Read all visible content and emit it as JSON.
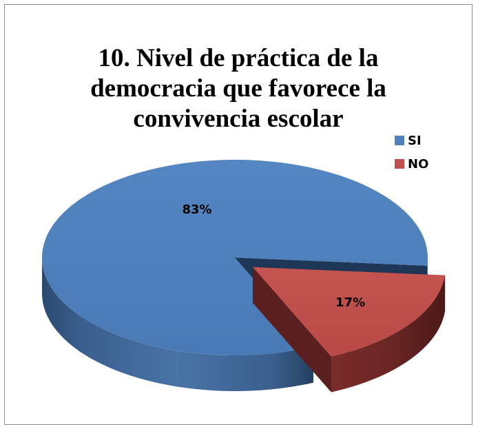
{
  "chart_data": {
    "type": "pie",
    "title": "10. Nivel de práctica de la democracia que favorece la convivencia escolar",
    "title_lines": [
      "10. Nivel de práctica de la",
      "democracia que favorece la",
      "convivencia escolar"
    ],
    "categories": [
      "SI",
      "NO"
    ],
    "values": [
      83,
      17
    ],
    "data_labels": [
      "83%",
      "17%"
    ],
    "colors": [
      "#4f81bd",
      "#c0504d"
    ],
    "legend_position": "right",
    "style": "3d-exploded"
  }
}
